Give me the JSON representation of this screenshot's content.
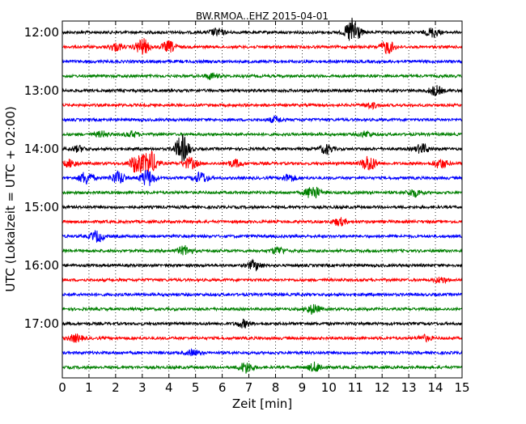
{
  "chart_data": {
    "type": "line",
    "title": "BW.RMOA..EHZ 2015-04-01",
    "xlabel": "Zeit  [min]",
    "ylabel": "UTC (Lokalzeit = UTC + 02:00)",
    "xlim": [
      0,
      15
    ],
    "x_ticks": [
      "0",
      "1",
      "2",
      "3",
      "4",
      "5",
      "6",
      "7",
      "8",
      "9",
      "10",
      "11",
      "12",
      "13",
      "14",
      "15"
    ],
    "y_ticks": [
      "12:00",
      "13:00",
      "14:00",
      "15:00",
      "16:00",
      "17:00"
    ],
    "grid": "vertical dotted at each minute",
    "line_colors": [
      "#000000",
      "#ff0000",
      "#0000ff",
      "#008000"
    ],
    "rows": [
      {
        "start": "12:00",
        "color": "#000000",
        "bursts": [
          [
            5.8,
            0.4
          ],
          [
            10.9,
            1.6
          ],
          [
            13.9,
            0.5
          ]
        ]
      },
      {
        "start": "12:15",
        "color": "#ff0000",
        "bursts": [
          [
            2.0,
            0.4
          ],
          [
            3.0,
            0.9
          ],
          [
            4.0,
            0.6
          ],
          [
            12.2,
            0.7
          ]
        ]
      },
      {
        "start": "12:30",
        "color": "#0000ff",
        "bursts": []
      },
      {
        "start": "12:45",
        "color": "#008000",
        "bursts": [
          [
            5.6,
            0.3
          ]
        ]
      },
      {
        "start": "13:00",
        "color": "#000000",
        "bursts": [
          [
            14.0,
            0.5
          ]
        ]
      },
      {
        "start": "13:15",
        "color": "#ff0000",
        "bursts": [
          [
            11.6,
            0.3
          ]
        ]
      },
      {
        "start": "13:30",
        "color": "#0000ff",
        "bursts": [
          [
            8.0,
            0.3
          ]
        ]
      },
      {
        "start": "13:45",
        "color": "#008000",
        "bursts": [
          [
            1.5,
            0.3
          ],
          [
            2.6,
            0.3
          ],
          [
            11.4,
            0.3
          ]
        ]
      },
      {
        "start": "14:00",
        "color": "#000000",
        "bursts": [
          [
            0.6,
            0.3
          ],
          [
            4.5,
            1.5
          ],
          [
            9.9,
            0.5
          ],
          [
            13.5,
            0.5
          ]
        ]
      },
      {
        "start": "14:15",
        "color": "#ff0000",
        "bursts": [
          [
            0.3,
            0.4
          ],
          [
            2.8,
            1.1
          ],
          [
            3.3,
            1.3
          ],
          [
            4.8,
            0.6
          ],
          [
            6.5,
            0.4
          ],
          [
            11.5,
            0.9
          ],
          [
            14.2,
            0.5
          ]
        ]
      },
      {
        "start": "14:30",
        "color": "#0000ff",
        "bursts": [
          [
            0.9,
            0.7
          ],
          [
            2.1,
            0.7
          ],
          [
            3.2,
            0.9
          ],
          [
            5.2,
            0.6
          ],
          [
            8.5,
            0.4
          ]
        ]
      },
      {
        "start": "14:45",
        "color": "#008000",
        "bursts": [
          [
            9.4,
            0.8
          ],
          [
            13.2,
            0.4
          ]
        ]
      },
      {
        "start": "15:00",
        "color": "#000000",
        "bursts": []
      },
      {
        "start": "15:15",
        "color": "#ff0000",
        "bursts": [
          [
            10.4,
            0.4
          ]
        ]
      },
      {
        "start": "15:30",
        "color": "#0000ff",
        "bursts": [
          [
            1.3,
            0.6
          ]
        ]
      },
      {
        "start": "15:45",
        "color": "#008000",
        "bursts": [
          [
            4.6,
            0.5
          ],
          [
            8.1,
            0.4
          ]
        ]
      },
      {
        "start": "16:00",
        "color": "#000000",
        "bursts": [
          [
            7.2,
            0.5
          ]
        ]
      },
      {
        "start": "16:15",
        "color": "#ff0000",
        "bursts": [
          [
            14.2,
            0.3
          ]
        ]
      },
      {
        "start": "16:30",
        "color": "#0000ff",
        "bursts": []
      },
      {
        "start": "16:45",
        "color": "#008000",
        "bursts": [
          [
            9.4,
            0.5
          ]
        ]
      },
      {
        "start": "17:00",
        "color": "#000000",
        "bursts": [
          [
            6.8,
            0.4
          ]
        ]
      },
      {
        "start": "17:15",
        "color": "#ff0000",
        "bursts": [
          [
            0.5,
            0.4
          ],
          [
            13.6,
            0.3
          ]
        ]
      },
      {
        "start": "17:30",
        "color": "#0000ff",
        "bursts": [
          [
            4.9,
            0.3
          ]
        ]
      },
      {
        "start": "17:45",
        "color": "#008000",
        "bursts": [
          [
            6.9,
            0.6
          ],
          [
            9.5,
            0.5
          ]
        ]
      }
    ]
  }
}
